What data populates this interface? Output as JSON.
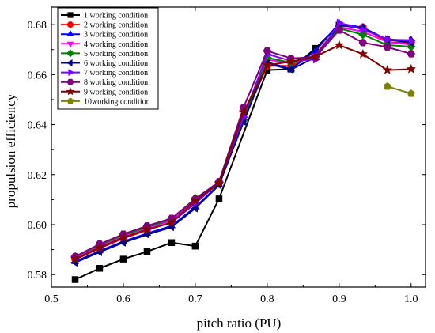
{
  "chart_data": {
    "type": "line",
    "title": "",
    "xlabel": "pitch ratio (PU)",
    "ylabel": "propulsion efficiency",
    "xlim": [
      0.5,
      1.02
    ],
    "ylim": [
      0.575,
      0.687
    ],
    "xticks": [
      0.5,
      0.6,
      0.7,
      0.8,
      0.9,
      1.0
    ],
    "xtick_labels": [
      "0.5",
      "0.6",
      "0.7",
      "0.8",
      "0.9",
      "1.0"
    ],
    "yticks": [
      0.58,
      0.6,
      0.62,
      0.64,
      0.66,
      0.68
    ],
    "ytick_labels": [
      "0.58",
      "0.60",
      "0.62",
      "0.64",
      "0.66",
      "0.68"
    ],
    "grid": false,
    "legend_position": "top-left",
    "series": [
      {
        "name": "1 working condition",
        "color": "#000000",
        "marker": "square",
        "x": [
          0.533,
          0.567,
          0.6,
          0.633,
          0.667,
          0.7,
          0.733,
          0.8,
          0.833,
          0.867,
          0.9
        ],
        "y": [
          0.578,
          0.5825,
          0.5862,
          0.5892,
          0.5928,
          0.5914,
          0.6103,
          0.6618,
          0.6622,
          0.6705,
          0.6798
        ]
      },
      {
        "name": "2 working condition",
        "color": "#ff0000",
        "marker": "circle",
        "x": [
          0.533,
          0.567,
          0.6,
          0.633,
          0.667,
          0.7,
          0.733,
          0.767,
          0.8,
          0.833,
          0.867,
          0.9,
          0.933,
          0.967,
          1.0
        ],
        "y": [
          0.586,
          0.5905,
          0.5945,
          0.5978,
          0.601,
          0.6095,
          0.6165,
          0.642,
          0.6635,
          0.6635,
          0.668,
          0.6795,
          0.679,
          0.673,
          0.6725
        ]
      },
      {
        "name": "3 working condition",
        "color": "#0000ff",
        "marker": "triangle-up",
        "x": [
          0.533,
          0.567,
          0.6,
          0.633,
          0.667,
          0.7,
          0.733,
          0.767,
          0.8,
          0.833,
          0.867,
          0.9,
          0.933,
          0.967,
          1.0
        ],
        "y": [
          0.5852,
          0.5895,
          0.5932,
          0.5965,
          0.5995,
          0.607,
          0.616,
          0.641,
          0.665,
          0.6622,
          0.6695,
          0.6805,
          0.6788,
          0.674,
          0.6738
        ]
      },
      {
        "name": "4 working condition",
        "color": "#ff00ff",
        "marker": "triangle-down",
        "x": [
          0.533,
          0.567,
          0.6,
          0.633,
          0.667,
          0.7,
          0.733,
          0.767,
          0.8,
          0.833,
          0.867,
          0.9,
          0.933,
          0.967,
          1.0
        ],
        "y": [
          0.5868,
          0.5915,
          0.5953,
          0.5986,
          0.6016,
          0.61,
          0.617,
          0.6425,
          0.666,
          0.6645,
          0.6675,
          0.679,
          0.6772,
          0.673,
          0.672
        ]
      },
      {
        "name": "5 working condition",
        "color": "#008000",
        "marker": "diamond",
        "x": [
          0.533,
          0.567,
          0.6,
          0.633,
          0.667,
          0.7,
          0.733,
          0.767,
          0.8,
          0.833,
          0.867,
          0.9,
          0.933,
          0.967,
          1.0
        ],
        "y": [
          0.5872,
          0.5918,
          0.5958,
          0.599,
          0.6022,
          0.6105,
          0.6168,
          0.6418,
          0.6668,
          0.6648,
          0.6672,
          0.6785,
          0.676,
          0.6718,
          0.6712
        ]
      },
      {
        "name": "6 working condition",
        "color": "#000080",
        "marker": "triangle-left",
        "x": [
          0.533,
          0.567,
          0.6,
          0.633,
          0.667,
          0.7,
          0.733,
          0.767,
          0.8,
          0.833,
          0.867,
          0.9,
          0.933,
          0.967,
          1.0
        ],
        "y": [
          0.5848,
          0.589,
          0.5928,
          0.596,
          0.599,
          0.6065,
          0.6158,
          0.6412,
          0.6645,
          0.662,
          0.667,
          0.6798,
          0.6785,
          0.674,
          0.6728
        ]
      },
      {
        "name": "7 working condition",
        "color": "#8000ff",
        "marker": "triangle-right",
        "x": [
          0.533,
          0.567,
          0.6,
          0.633,
          0.667,
          0.7,
          0.733,
          0.767,
          0.8,
          0.833,
          0.867,
          0.9,
          0.933,
          0.967,
          1.0
        ],
        "y": [
          0.5862,
          0.5908,
          0.5948,
          0.598,
          0.6008,
          0.6085,
          0.6168,
          0.643,
          0.6682,
          0.6655,
          0.666,
          0.6808,
          0.678,
          0.6742,
          0.6735
        ]
      },
      {
        "name": "8 working condition",
        "color": "#800080",
        "marker": "hexagon",
        "x": [
          0.533,
          0.567,
          0.6,
          0.633,
          0.667,
          0.7,
          0.733,
          0.767,
          0.8,
          0.833,
          0.867,
          0.9,
          0.933,
          0.967,
          1.0
        ],
        "y": [
          0.5872,
          0.5922,
          0.5962,
          0.5995,
          0.6025,
          0.6102,
          0.6172,
          0.6468,
          0.6695,
          0.6665,
          0.667,
          0.6778,
          0.6728,
          0.671,
          0.6683
        ]
      },
      {
        "name": "9 working condition",
        "color": "#800000",
        "marker": "star",
        "x": [
          0.533,
          0.567,
          0.6,
          0.633,
          0.667,
          0.7,
          0.733,
          0.767,
          0.8,
          0.833,
          0.867,
          0.9,
          0.933,
          0.967,
          1.0
        ],
        "y": [
          0.5862,
          0.5908,
          0.5948,
          0.598,
          0.6008,
          0.6095,
          0.6165,
          0.645,
          0.6638,
          0.6652,
          0.6672,
          0.6718,
          0.6682,
          0.6618,
          0.6622
        ]
      },
      {
        "name": "10working condition",
        "color": "#808000",
        "marker": "pentagon",
        "x": [
          0.967,
          1.0
        ],
        "y": [
          0.6553,
          0.6524
        ]
      }
    ]
  }
}
